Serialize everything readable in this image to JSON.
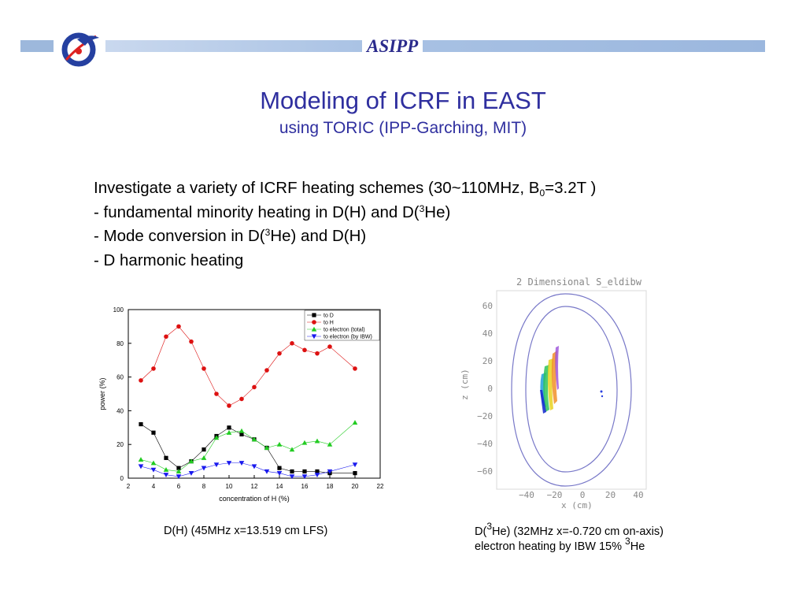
{
  "header": {
    "brand": "ASIPP",
    "logo_icon": "asipp-logo-icon",
    "band_color": "#9bb7de"
  },
  "slide": {
    "title": "Modeling of ICRF in EAST",
    "subtitle": "using TORIC (IPP-Garching, MIT)",
    "bullet1_pre": "Investigate a variety of ICRF heating schemes (30~110MHz, B",
    "bullet1_sub": "0",
    "bullet1_post": "=3.2T )",
    "bullet2_pre": "- fundamental minority heating in D(H) and D(",
    "bullet2_sup": "3",
    "bullet2_post": "He)",
    "bullet3_pre": "- Mode conversion in D(",
    "bullet3_sup": "3",
    "bullet3_post": "He) and D(H)",
    "bullet4": "- D harmonic heating",
    "caption_left": "D(H) (45MHz x=13.519 cm LFS)",
    "caption_right_pre": "D(",
    "caption_right_sup": "3",
    "caption_right_post": "He) (32MHz x=-0.720 cm on-axis)",
    "caption_right2_pre": "electron heating by IBW 15% ",
    "caption_right2_sup": "3",
    "caption_right2_post": "He"
  },
  "chart_data": [
    {
      "type": "line",
      "xlabel": "concentration of H (%)",
      "ylabel": "power (%)",
      "xlim": [
        2,
        22
      ],
      "ylim": [
        0,
        100
      ],
      "xticks": [
        2,
        4,
        6,
        8,
        10,
        12,
        14,
        16,
        18,
        20,
        22
      ],
      "yticks": [
        0,
        20,
        40,
        60,
        80,
        100
      ],
      "legend_position": "top-right",
      "series": [
        {
          "name": "to D",
          "color": "#000000",
          "marker": "square",
          "x": [
            3,
            4,
            5,
            6,
            7,
            8,
            9,
            10,
            11,
            12,
            13,
            14,
            15,
            16,
            17,
            18,
            20
          ],
          "y": [
            32,
            27,
            12,
            6,
            10,
            17,
            25,
            30,
            26,
            23,
            18,
            6,
            4,
            4,
            4,
            3,
            3
          ]
        },
        {
          "name": "to H",
          "color": "#dd1111",
          "marker": "circle",
          "x": [
            3,
            4,
            5,
            6,
            7,
            8,
            9,
            10,
            11,
            12,
            13,
            14,
            15,
            16,
            17,
            18,
            20
          ],
          "y": [
            58,
            65,
            84,
            90,
            81,
            65,
            50,
            43,
            47,
            54,
            64,
            74,
            80,
            76,
            74,
            78,
            65
          ]
        },
        {
          "name": "to electron (total)",
          "color": "#22cc22",
          "marker": "triangle-up",
          "x": [
            3,
            4,
            5,
            6,
            7,
            8,
            9,
            10,
            11,
            12,
            13,
            14,
            15,
            16,
            17,
            18,
            20
          ],
          "y": [
            11,
            9,
            5,
            4,
            10,
            12,
            24,
            27,
            28,
            23,
            18,
            20,
            17,
            21,
            22,
            20,
            33
          ]
        },
        {
          "name": "to electron (by IBW)",
          "color": "#1a1aee",
          "marker": "triangle-down",
          "x": [
            3,
            4,
            5,
            6,
            7,
            8,
            9,
            10,
            11,
            12,
            13,
            14,
            15,
            16,
            17,
            18,
            20
          ],
          "y": [
            7,
            5,
            2,
            1,
            3,
            6,
            8,
            9,
            9,
            7,
            4,
            3,
            1,
            1,
            2,
            4,
            8
          ]
        }
      ]
    },
    {
      "type": "contour",
      "title": "2 Dimensional S_eldibw",
      "xlabel": "x (cm)",
      "ylabel": "z (cm)",
      "xticks": [
        "−40",
        "−20",
        "0",
        "20",
        "40"
      ],
      "yticks": [
        "60",
        "40",
        "20",
        "0",
        "−20",
        "−40",
        "−60"
      ],
      "outline_color": "#7878c8"
    }
  ]
}
